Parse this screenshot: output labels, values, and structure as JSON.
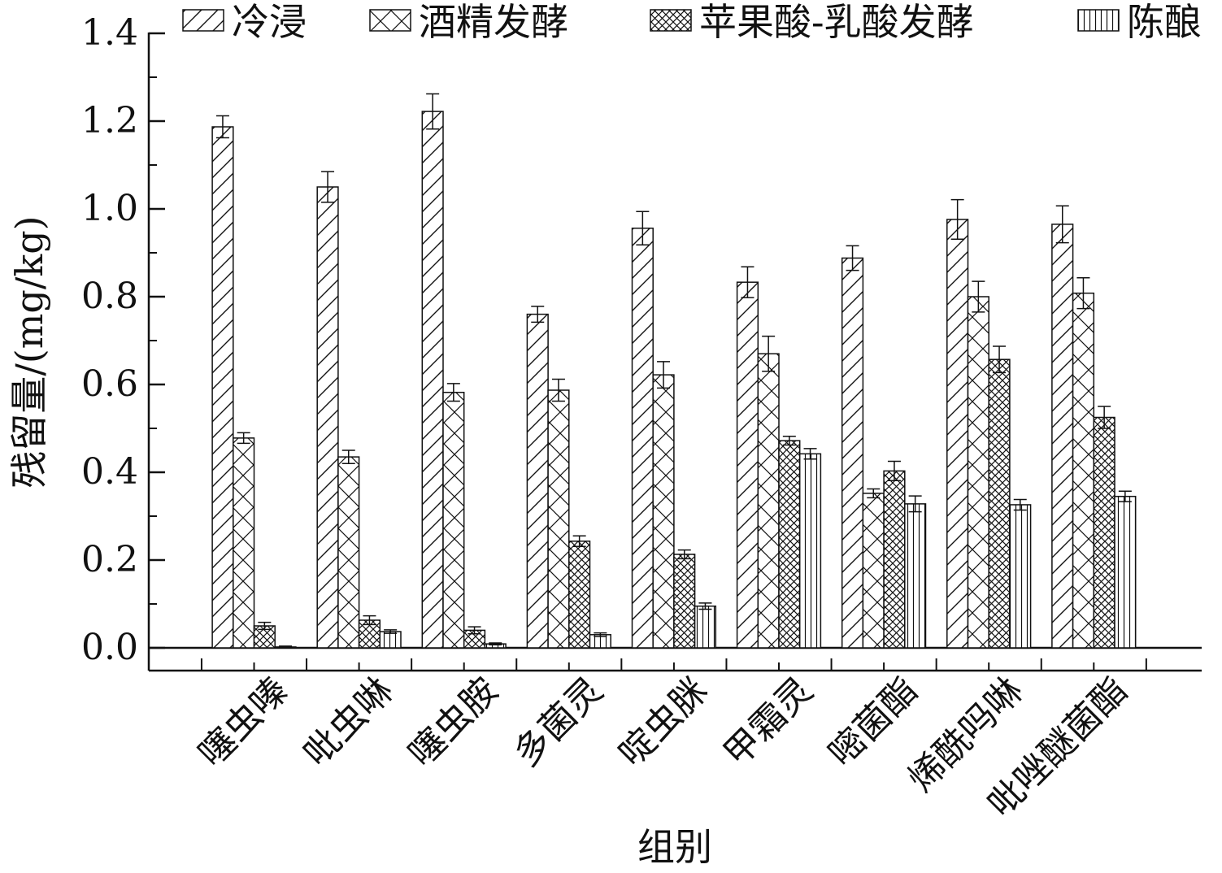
{
  "chart_data": {
    "type": "bar",
    "xlabel": "组别",
    "ylabel": "残留量/(mg/kg)",
    "ylim": [
      0,
      1.4
    ],
    "yticks": [
      "0.0",
      "0.2",
      "0.4",
      "0.6",
      "0.8",
      "1.0",
      "1.2",
      "1.4"
    ],
    "grid": false,
    "legend_position": "top",
    "categories": [
      "噻虫嗪",
      "吡虫啉",
      "噻虫胺",
      "多菌灵",
      "啶虫脒",
      "甲霜灵",
      "嘧菌酯",
      "烯酰吗啉",
      "吡唑醚菌酯"
    ],
    "series": [
      {
        "name": "冷浸",
        "pattern": "diagonal-hatch",
        "values": [
          1.187,
          1.05,
          1.222,
          0.76,
          0.956,
          0.833,
          0.888,
          0.976,
          0.965
        ],
        "errors": [
          0.025,
          0.035,
          0.04,
          0.018,
          0.038,
          0.035,
          0.028,
          0.045,
          0.042
        ]
      },
      {
        "name": "酒精发酵",
        "pattern": "cross-hatch",
        "values": [
          0.478,
          0.435,
          0.582,
          0.587,
          0.622,
          0.67,
          0.352,
          0.8,
          0.808
        ],
        "errors": [
          0.012,
          0.015,
          0.02,
          0.025,
          0.03,
          0.04,
          0.01,
          0.035,
          0.035
        ]
      },
      {
        "name": "苹果酸-乳酸发酵",
        "pattern": "dense-cross-hatch",
        "values": [
          0.05,
          0.063,
          0.04,
          0.243,
          0.213,
          0.472,
          0.403,
          0.657,
          0.525
        ],
        "errors": [
          0.008,
          0.01,
          0.008,
          0.012,
          0.01,
          0.01,
          0.022,
          0.03,
          0.025
        ]
      },
      {
        "name": "陈酿",
        "pattern": "vertical-lines",
        "values": [
          0.002,
          0.037,
          0.009,
          0.03,
          0.095,
          0.442,
          0.328,
          0.326,
          0.345
        ],
        "errors": [
          0.002,
          0.004,
          0.002,
          0.004,
          0.007,
          0.012,
          0.018,
          0.012,
          0.012
        ]
      }
    ]
  }
}
